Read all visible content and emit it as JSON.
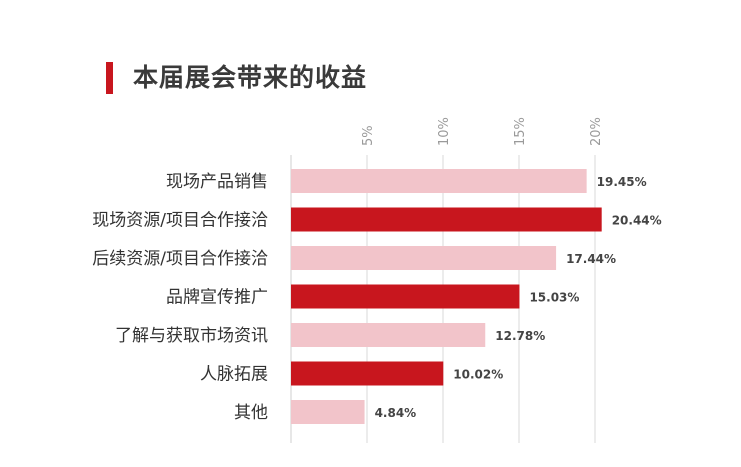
{
  "header": {
    "title": "本届展会带来的收益"
  },
  "chart_data": {
    "type": "bar",
    "orientation": "horizontal",
    "title": "本届展会带来的收益",
    "categories": [
      "现场产品销售",
      "现场资源/项目合作接洽",
      "后续资源/项目合作接洽",
      "品牌宣传推广",
      "了解与获取市场资讯",
      "人脉拓展",
      "其他"
    ],
    "values": [
      19.45,
      20.44,
      17.44,
      15.03,
      12.78,
      10.02,
      4.84
    ],
    "value_labels": [
      "19.45%",
      "20.44%",
      "17.44%",
      "15.03%",
      "12.78%",
      "10.02%",
      "4.84%"
    ],
    "xticks": [
      5,
      10,
      15,
      20
    ],
    "xtick_labels": [
      "5%",
      "10%",
      "15%",
      "20%"
    ],
    "xlim": [
      0,
      20.7
    ],
    "grid": true,
    "legend": "none",
    "colors": {
      "dark": "#c8161e",
      "light": "#f2c4ca",
      "accent": "#c8161e"
    },
    "bar_color_pattern": [
      "light",
      "dark",
      "light",
      "dark",
      "light",
      "dark",
      "light"
    ]
  }
}
